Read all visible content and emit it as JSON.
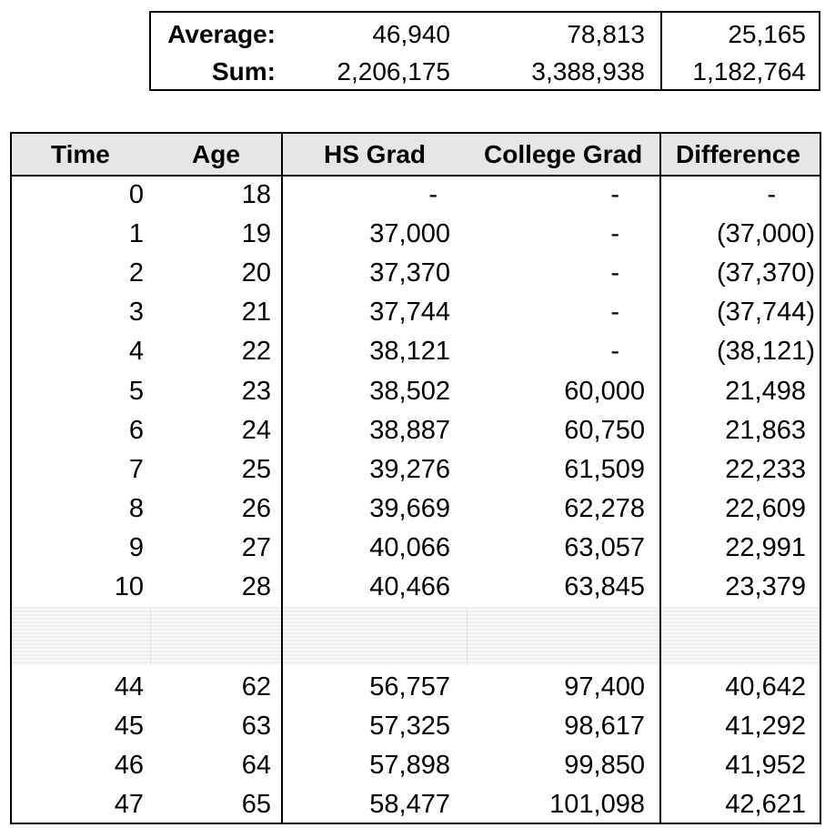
{
  "summary": {
    "average": {
      "label": "Average:",
      "hs": "46,940",
      "college": "78,813",
      "diff": "25,165"
    },
    "sum": {
      "label": "Sum:",
      "hs": "2,206,175",
      "college": "3,388,938",
      "diff": "1,182,764"
    }
  },
  "headers": {
    "time": "Time",
    "age": "Age",
    "hs": "HS Grad",
    "college": "College Grad",
    "diff": "Difference"
  },
  "rows_top": [
    {
      "time": "0",
      "age": "18",
      "hs": "-",
      "college": "-",
      "diff": "-"
    },
    {
      "time": "1",
      "age": "19",
      "hs": "37,000",
      "college": "-",
      "diff": "(37,000)"
    },
    {
      "time": "2",
      "age": "20",
      "hs": "37,370",
      "college": "-",
      "diff": "(37,370)"
    },
    {
      "time": "3",
      "age": "21",
      "hs": "37,744",
      "college": "-",
      "diff": "(37,744)"
    },
    {
      "time": "4",
      "age": "22",
      "hs": "38,121",
      "college": "-",
      "diff": "(38,121)"
    },
    {
      "time": "5",
      "age": "23",
      "hs": "38,502",
      "college": "60,000",
      "diff": "21,498"
    },
    {
      "time": "6",
      "age": "24",
      "hs": "38,887",
      "college": "60,750",
      "diff": "21,863"
    },
    {
      "time": "7",
      "age": "25",
      "hs": "39,276",
      "college": "61,509",
      "diff": "22,233"
    },
    {
      "time": "8",
      "age": "26",
      "hs": "39,669",
      "college": "62,278",
      "diff": "22,609"
    },
    {
      "time": "9",
      "age": "27",
      "hs": "40,066",
      "college": "63,057",
      "diff": "22,991"
    },
    {
      "time": "10",
      "age": "28",
      "hs": "40,466",
      "college": "63,845",
      "diff": "23,379"
    }
  ],
  "rows_bottom": [
    {
      "time": "44",
      "age": "62",
      "hs": "56,757",
      "college": "97,400",
      "diff": "40,642"
    },
    {
      "time": "45",
      "age": "63",
      "hs": "57,325",
      "college": "98,617",
      "diff": "41,292"
    },
    {
      "time": "46",
      "age": "64",
      "hs": "57,898",
      "college": "99,850",
      "diff": "41,952"
    },
    {
      "time": "47",
      "age": "65",
      "hs": "58,477",
      "college": "101,098",
      "diff": "42,621"
    }
  ]
}
